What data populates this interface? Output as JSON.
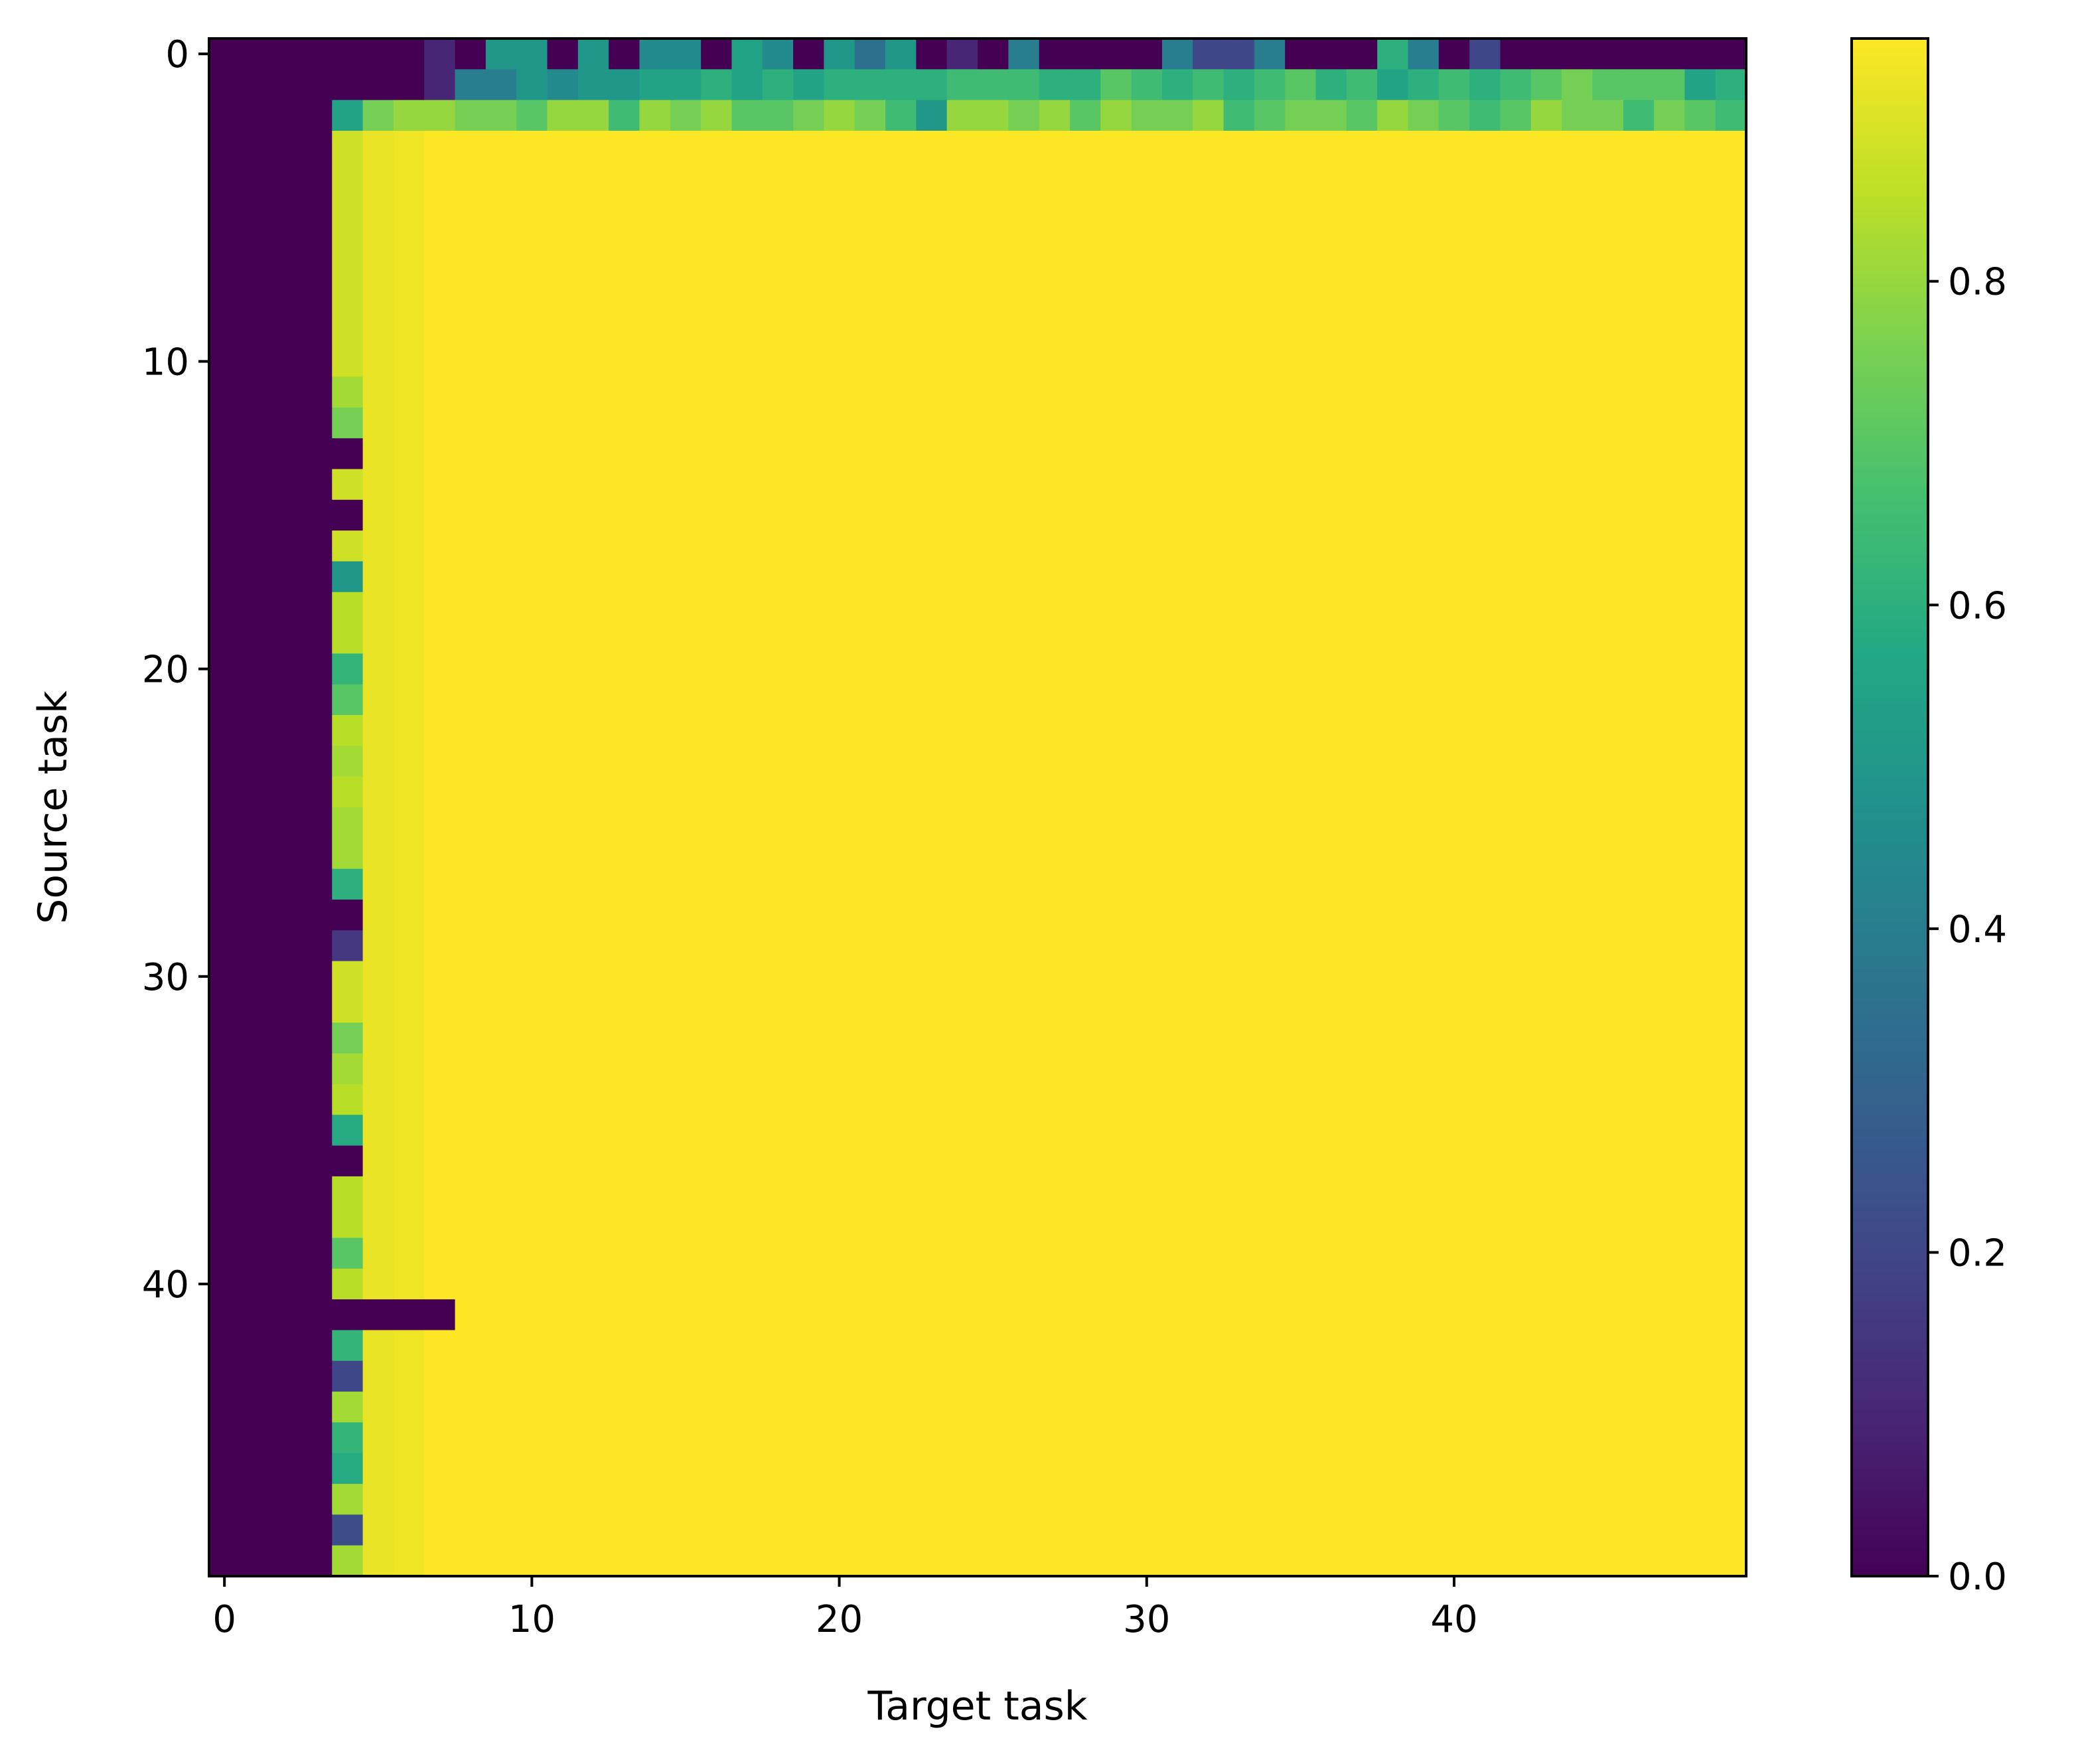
{
  "chart_data": {
    "type": "heatmap",
    "xlabel": "Target task",
    "ylabel": "Source task",
    "rows": 50,
    "cols": 50,
    "x_ticks": [
      0,
      10,
      20,
      30,
      40
    ],
    "y_ticks": [
      0,
      10,
      20,
      30,
      40
    ],
    "colormap": "viridis",
    "clim": [
      0.0,
      0.95
    ],
    "colorbar_ticks": [
      0.0,
      0.2,
      0.4,
      0.6,
      0.8
    ],
    "grid": false,
    "legend": "colorbar on right",
    "values_description_note": null,
    "rows_data": {
      "row_0": [
        0,
        0,
        0,
        0,
        0,
        0,
        0,
        0.1,
        0,
        0.5,
        0.5,
        0,
        0.5,
        0,
        0.45,
        0.45,
        0,
        0.55,
        0.45,
        0,
        0.5,
        0.35,
        0.5,
        0,
        0.1,
        0,
        0.4,
        0,
        0,
        0,
        0,
        0.4,
        0.2,
        0.2,
        0.4,
        0,
        0,
        0,
        0.6,
        0.4,
        0,
        0.2,
        0,
        0,
        0,
        0,
        0,
        0,
        0,
        0
      ],
      "row_1": [
        0,
        0,
        0,
        0,
        0,
        0,
        0,
        0.1,
        0.4,
        0.4,
        0.5,
        0.45,
        0.5,
        0.5,
        0.55,
        0.55,
        0.6,
        0.55,
        0.6,
        0.55,
        0.6,
        0.6,
        0.6,
        0.6,
        0.65,
        0.65,
        0.65,
        0.6,
        0.6,
        0.7,
        0.65,
        0.6,
        0.65,
        0.6,
        0.65,
        0.7,
        0.6,
        0.65,
        0.55,
        0.6,
        0.65,
        0.6,
        0.65,
        0.7,
        0.75,
        0.7,
        0.7,
        0.7,
        0.55,
        0.6
      ],
      "row_2": [
        0,
        0,
        0,
        0,
        0.55,
        0.75,
        0.8,
        0.8,
        0.75,
        0.75,
        0.7,
        0.8,
        0.8,
        0.65,
        0.8,
        0.75,
        0.8,
        0.7,
        0.7,
        0.75,
        0.8,
        0.75,
        0.65,
        0.5,
        0.8,
        0.8,
        0.75,
        0.8,
        0.7,
        0.8,
        0.75,
        0.75,
        0.8,
        0.65,
        0.7,
        0.75,
        0.75,
        0.7,
        0.8,
        0.75,
        0.7,
        0.65,
        0.7,
        0.8,
        0.75,
        0.75,
        0.65,
        0.75,
        0.7,
        0.65
      ],
      "col4_by_row": [
        0,
        0,
        0,
        0.88,
        0.88,
        0.88,
        0.88,
        0.88,
        0.88,
        0.88,
        0.88,
        0.82,
        0.75,
        0,
        0.88,
        0,
        0.88,
        0.5,
        0.85,
        0.85,
        0.62,
        0.7,
        0.85,
        0.82,
        0.85,
        0.82,
        0.82,
        0.6,
        0,
        0.15,
        0.88,
        0.88,
        0.75,
        0.82,
        0.85,
        0.58,
        0,
        0.85,
        0.85,
        0.7,
        0.85,
        0,
        0.62,
        0.2,
        0.82,
        0.62,
        0.58,
        0.82,
        0.22,
        0.82
      ],
      "col5_7_zero_row": 41,
      "default_value": 0.95
    }
  }
}
